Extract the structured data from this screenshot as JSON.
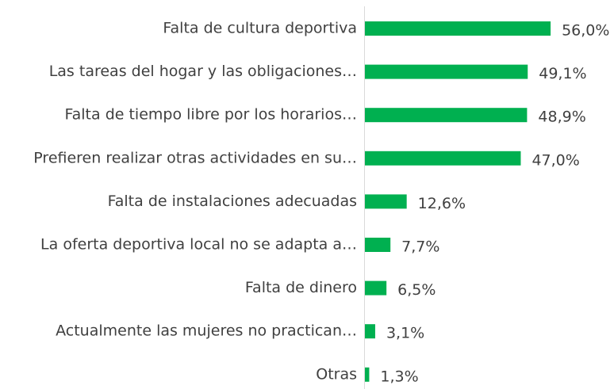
{
  "chart_data": {
    "type": "bar",
    "orientation": "horizontal",
    "categories": [
      "Falta de cultura deportiva",
      "Las tareas del hogar y las obligaciones…",
      "Falta de tiempo libre por los horarios…",
      "Prefieren realizar otras actividades en su…",
      "Falta de instalaciones adecuadas",
      "La oferta deportiva local no se adapta a…",
      "Falta de dinero",
      "Actualmente las mujeres no practican…",
      "Otras"
    ],
    "values": [
      56.0,
      49.1,
      48.9,
      47.0,
      12.6,
      7.7,
      6.5,
      3.1,
      1.3
    ],
    "value_labels": [
      "56,0%",
      "49,1%",
      "48,9%",
      "47,0%",
      "12,6%",
      "7,7%",
      "6,5%",
      "3,1%",
      "1,3%"
    ],
    "color": "#00b050"
  }
}
